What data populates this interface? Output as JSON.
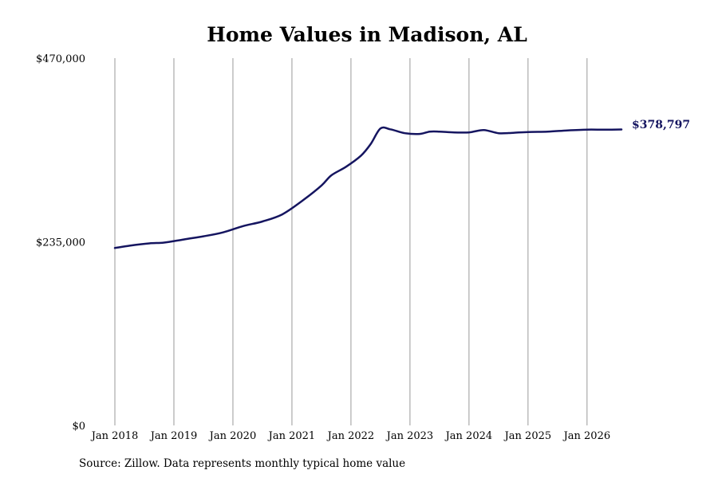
{
  "chart_data": {
    "type": "line",
    "title": "Home Values in Madison, AL",
    "xlabel": "",
    "ylabel": "",
    "ylim": [
      0,
      470000
    ],
    "yticks": [
      {
        "value": 0,
        "label": "$0"
      },
      {
        "value": 235000,
        "label": "$235,000"
      },
      {
        "value": 470000,
        "label": "$470,000"
      }
    ],
    "xlim": [
      "2018-01",
      "2026-08"
    ],
    "xticks": [
      {
        "date": "2018-01",
        "label": "Jan 2018"
      },
      {
        "date": "2019-01",
        "label": "Jan 2019"
      },
      {
        "date": "2020-01",
        "label": "Jan 2020"
      },
      {
        "date": "2021-01",
        "label": "Jan 2021"
      },
      {
        "date": "2022-01",
        "label": "Jan 2022"
      },
      {
        "date": "2023-01",
        "label": "Jan 2023"
      },
      {
        "date": "2024-01",
        "label": "Jan 2024"
      },
      {
        "date": "2025-01",
        "label": "Jan 2025"
      },
      {
        "date": "2026-01",
        "label": "Jan 2026"
      }
    ],
    "grid": {
      "vertical": true,
      "horizontal": false
    },
    "series": [
      {
        "name": "",
        "color": "#151560",
        "points": [
          {
            "date": "2018-01",
            "value": 227000
          },
          {
            "date": "2018-04",
            "value": 230000
          },
          {
            "date": "2018-08",
            "value": 233000
          },
          {
            "date": "2018-11",
            "value": 234000
          },
          {
            "date": "2019-03",
            "value": 238000
          },
          {
            "date": "2019-07",
            "value": 242000
          },
          {
            "date": "2019-11",
            "value": 247000
          },
          {
            "date": "2020-03",
            "value": 255000
          },
          {
            "date": "2020-07",
            "value": 261000
          },
          {
            "date": "2020-11",
            "value": 270000
          },
          {
            "date": "2021-03",
            "value": 287000
          },
          {
            "date": "2021-07",
            "value": 307000
          },
          {
            "date": "2021-09",
            "value": 320000
          },
          {
            "date": "2021-12",
            "value": 331000
          },
          {
            "date": "2022-03",
            "value": 345000
          },
          {
            "date": "2022-05",
            "value": 360000
          },
          {
            "date": "2022-07",
            "value": 380000
          },
          {
            "date": "2022-09",
            "value": 379000
          },
          {
            "date": "2022-12",
            "value": 374000
          },
          {
            "date": "2023-03",
            "value": 373000
          },
          {
            "date": "2023-05",
            "value": 376000
          },
          {
            "date": "2023-07",
            "value": 376000
          },
          {
            "date": "2023-10",
            "value": 375000
          },
          {
            "date": "2024-01",
            "value": 375000
          },
          {
            "date": "2024-04",
            "value": 378000
          },
          {
            "date": "2024-07",
            "value": 374000
          },
          {
            "date": "2024-10",
            "value": 374500
          },
          {
            "date": "2025-01",
            "value": 375500
          },
          {
            "date": "2025-05",
            "value": 376000
          },
          {
            "date": "2025-09",
            "value": 377500
          },
          {
            "date": "2026-01",
            "value": 378500
          },
          {
            "date": "2026-05",
            "value": 378500
          },
          {
            "date": "2026-08",
            "value": 378797
          }
        ]
      }
    ],
    "end_label": "$378,797",
    "source": "Source: Zillow. Data represents monthly typical home value"
  }
}
